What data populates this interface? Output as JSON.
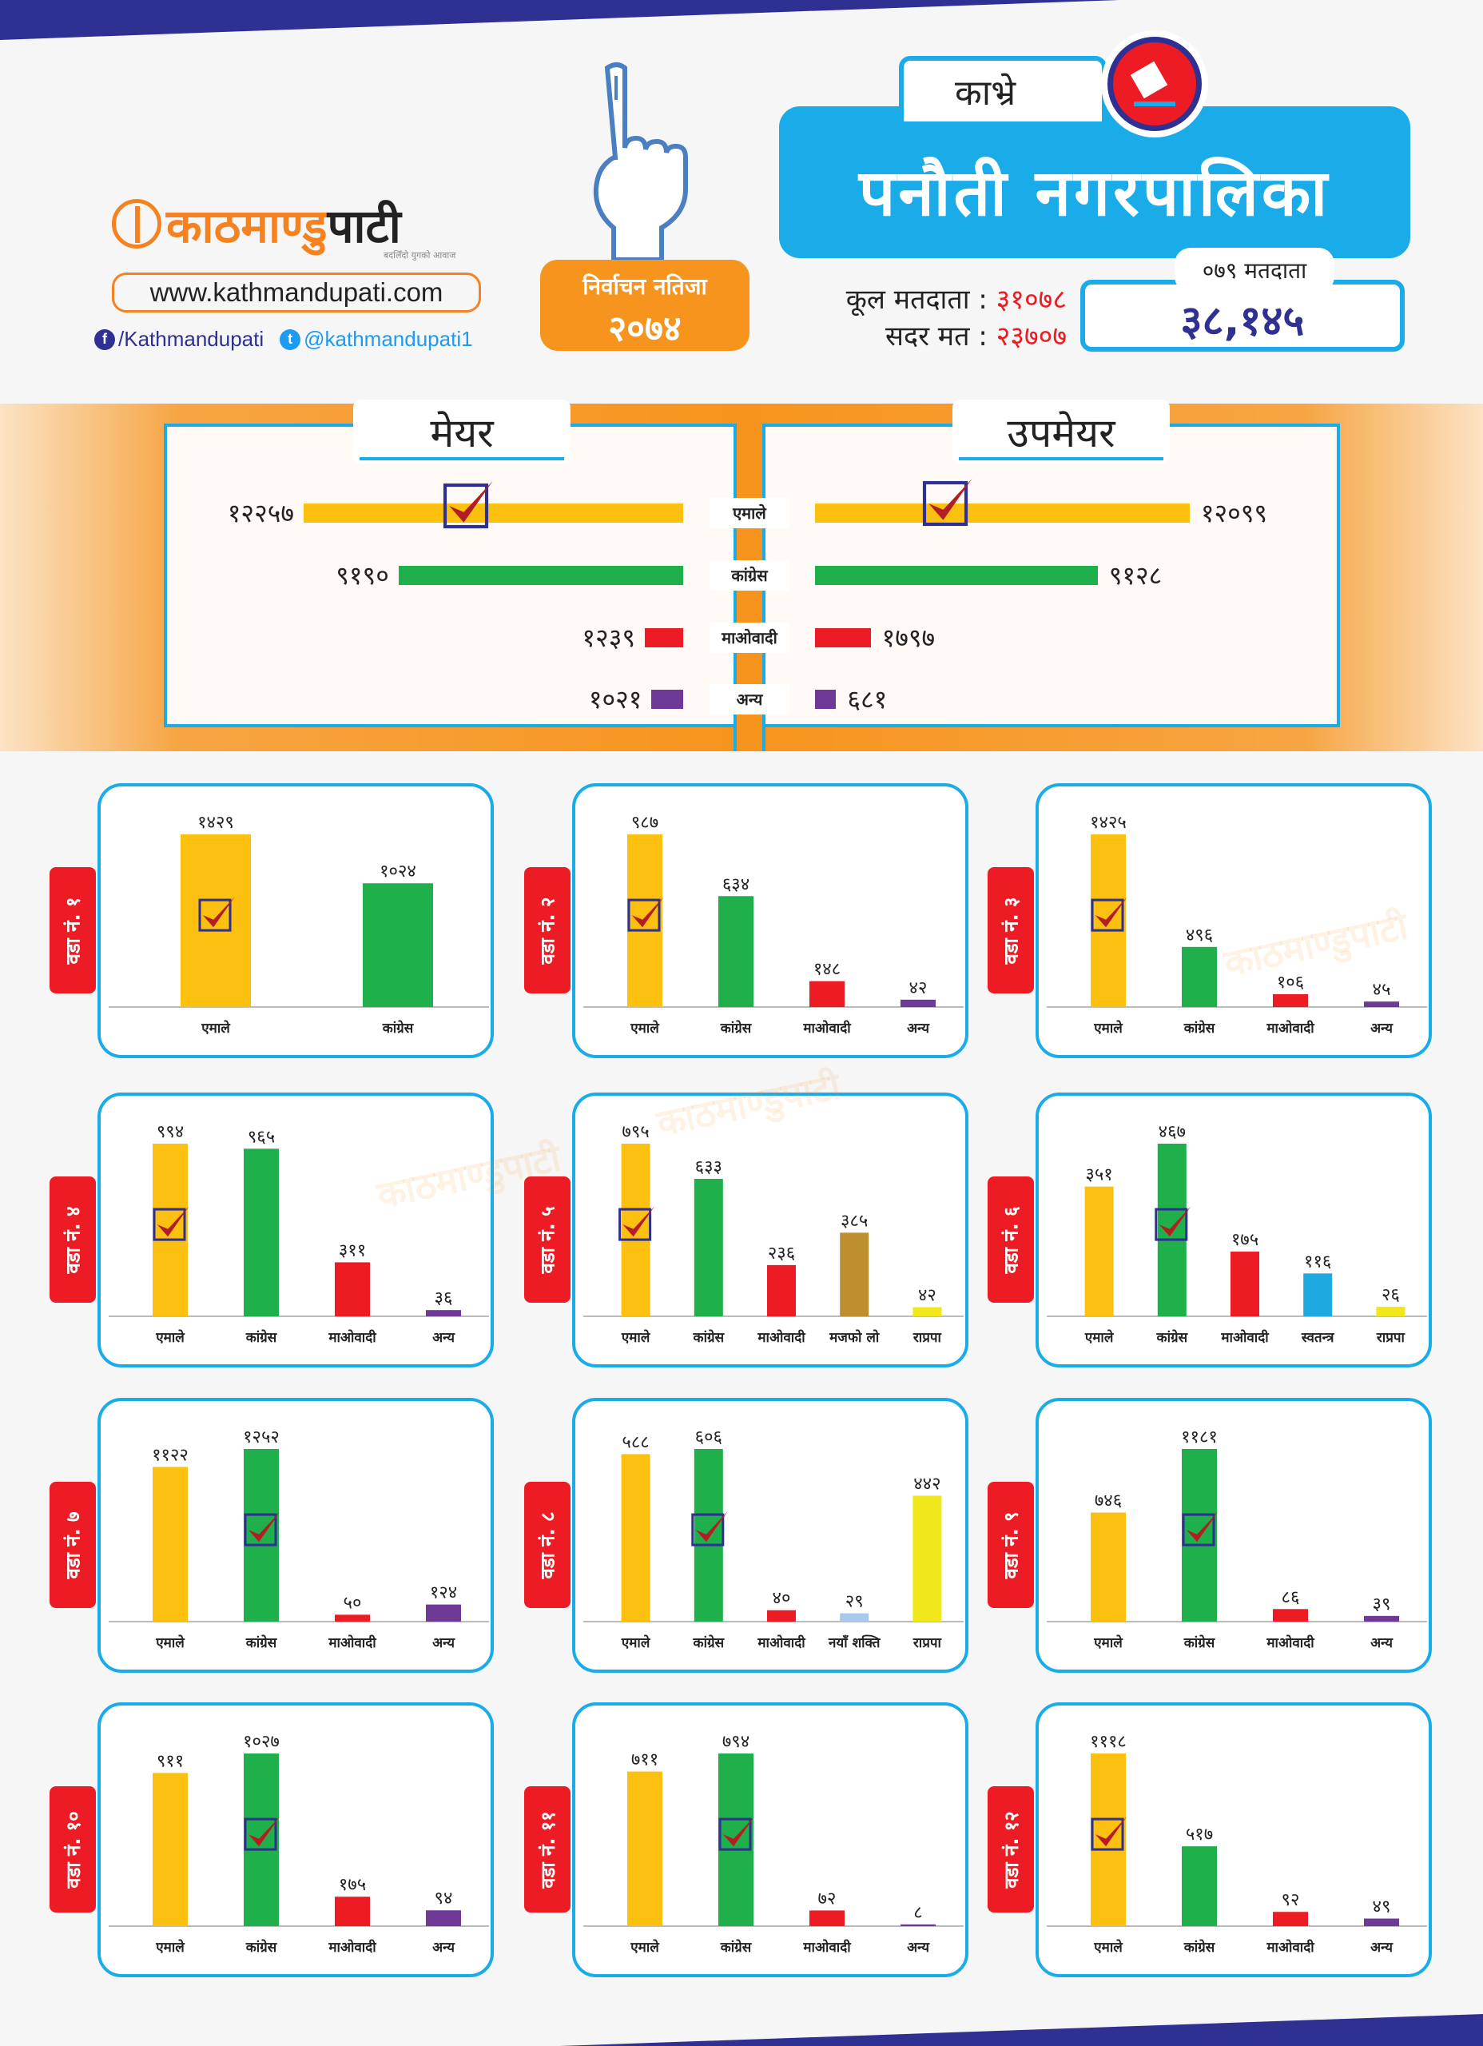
{
  "header": {
    "brand_name_part1": "काठमाण्डु",
    "brand_name_part2": "पाटी",
    "brand_tagline": "बदलिँदो युगको आवाज",
    "website": "www.kathmandupati.com",
    "facebook": "/Kathmandupati",
    "twitter": "@kathmandupati1",
    "result_badge_line1": "निर्वाचन नतिजा",
    "result_badge_line2": "२०७४",
    "district": "काभ्रे",
    "municipality": "पनौती नगरपालिका",
    "total_voters_label": "कूल मतदाता :",
    "total_voters_value": "३१०७८",
    "valid_votes_label": "सदर मत :",
    "valid_votes_value": "२३७०७",
    "voters_079_label": "०७९ मतदाता",
    "voters_079_value": "३८,१४५"
  },
  "colors": {
    "uml": "#fcc010",
    "congress": "#20b04b",
    "maoist": "#ed1c24",
    "other": "#6e3a96",
    "majafo": "#bd8f2f",
    "rpp": "#f0e81a",
    "independent": "#1fa9e1",
    "naya_shakti": "#a9c8ec",
    "accent_blue": "#1aace8",
    "navy": "#2e3191",
    "orange": "#f7941d",
    "tick_red": "#b51d24"
  },
  "chart_data": [
    {
      "type": "bar",
      "orientation": "horizontal",
      "title": "मेयर",
      "categories": [
        "एमाले",
        "कांग्रेस",
        "माओवादी",
        "अन्य"
      ],
      "values": [
        12257,
        9190,
        1239,
        1021
      ],
      "labels": [
        "१२२५७",
        "९१९०",
        "१२३९",
        "१०२१"
      ],
      "winner_index": 0
    },
    {
      "type": "bar",
      "orientation": "horizontal",
      "title": "उपमेयर",
      "categories": [
        "एमाले",
        "कांग्रेस",
        "माओवादी",
        "अन्य"
      ],
      "values": [
        12099,
        9128,
        1797,
        681
      ],
      "labels": [
        "१२०९९",
        "९१२८",
        "१७९७",
        "६८१"
      ],
      "winner_index": 0
    },
    {
      "type": "bar",
      "title": "वडा नं. १",
      "categories": [
        "एमाले",
        "कांग्रेस"
      ],
      "values": [
        1429,
        1024
      ],
      "labels": [
        "१४२९",
        "१०२४"
      ],
      "colors": [
        "uml",
        "congress"
      ],
      "winner_index": 0
    },
    {
      "type": "bar",
      "title": "वडा नं. २",
      "categories": [
        "एमाले",
        "कांग्रेस",
        "माओवादी",
        "अन्य"
      ],
      "values": [
        987,
        634,
        148,
        42
      ],
      "labels": [
        "९८७",
        "६३४",
        "१४८",
        "४२"
      ],
      "colors": [
        "uml",
        "congress",
        "maoist",
        "other"
      ],
      "winner_index": 0
    },
    {
      "type": "bar",
      "title": "वडा नं. ३",
      "categories": [
        "एमाले",
        "कांग्रेस",
        "माओवादी",
        "अन्य"
      ],
      "values": [
        1425,
        496,
        106,
        45
      ],
      "labels": [
        "१४२५",
        "४९६",
        "१०६",
        "४५"
      ],
      "colors": [
        "uml",
        "congress",
        "maoist",
        "other"
      ],
      "winner_index": 0
    },
    {
      "type": "bar",
      "title": "वडा नं. ४",
      "categories": [
        "एमाले",
        "कांग्रेस",
        "माओवादी",
        "अन्य"
      ],
      "values": [
        994,
        965,
        311,
        36
      ],
      "labels": [
        "९९४",
        "९६५",
        "३११",
        "३६"
      ],
      "colors": [
        "uml",
        "congress",
        "maoist",
        "other"
      ],
      "winner_index": 0
    },
    {
      "type": "bar",
      "title": "वडा नं. ५",
      "categories": [
        "एमाले",
        "कांग्रेस",
        "माओवादी",
        "मजफो लो",
        "राप्रपा"
      ],
      "values": [
        795,
        633,
        236,
        385,
        42
      ],
      "labels": [
        "७९५",
        "६३३",
        "२३६",
        "३८५",
        "४२"
      ],
      "colors": [
        "uml",
        "congress",
        "maoist",
        "majafo",
        "rpp"
      ],
      "winner_index": 0
    },
    {
      "type": "bar",
      "title": "वडा नं. ६",
      "categories": [
        "एमाले",
        "कांग्रेस",
        "माओवादी",
        "स्वतन्त्र",
        "राप्रपा"
      ],
      "values": [
        351,
        467,
        175,
        116,
        26
      ],
      "labels": [
        "३५१",
        "४६७",
        "१७५",
        "११६",
        "२६"
      ],
      "colors": [
        "uml",
        "congress",
        "maoist",
        "independent",
        "rpp"
      ],
      "winner_index": 1
    },
    {
      "type": "bar",
      "title": "वडा नं. ७",
      "categories": [
        "एमाले",
        "कांग्रेस",
        "माओवादी",
        "अन्य"
      ],
      "values": [
        1122,
        1252,
        50,
        124
      ],
      "labels": [
        "११२२",
        "१२५२",
        "५०",
        "१२४"
      ],
      "colors": [
        "uml",
        "congress",
        "maoist",
        "other"
      ],
      "winner_index": 1
    },
    {
      "type": "bar",
      "title": "वडा नं. ८",
      "categories": [
        "एमाले",
        "कांग्रेस",
        "माओवादी",
        "नयाँ शक्ति",
        "राप्रपा"
      ],
      "values": [
        588,
        606,
        40,
        29,
        442
      ],
      "labels": [
        "५८८",
        "६०६",
        "४०",
        "२९",
        "४४२"
      ],
      "colors": [
        "uml",
        "congress",
        "maoist",
        "naya_shakti",
        "rpp"
      ],
      "winner_index": 1
    },
    {
      "type": "bar",
      "title": "वडा नं. ९",
      "categories": [
        "एमाले",
        "कांग्रेस",
        "माओवादी",
        "अन्य"
      ],
      "values": [
        746,
        1181,
        86,
        39
      ],
      "labels": [
        "७४६",
        "११८१",
        "८६",
        "३९"
      ],
      "colors": [
        "uml",
        "congress",
        "maoist",
        "other"
      ],
      "winner_index": 1
    },
    {
      "type": "bar",
      "title": "वडा नं. १०",
      "categories": [
        "एमाले",
        "कांग्रेस",
        "माओवादी",
        "अन्य"
      ],
      "values": [
        911,
        1027,
        175,
        94
      ],
      "labels": [
        "९११",
        "१०२७",
        "१७५",
        "९४"
      ],
      "colors": [
        "uml",
        "congress",
        "maoist",
        "other"
      ],
      "winner_index": 1
    },
    {
      "type": "bar",
      "title": "वडा नं. ११",
      "categories": [
        "एमाले",
        "कांग्रेस",
        "माओवादी",
        "अन्य"
      ],
      "values": [
        711,
        794,
        72,
        8
      ],
      "labels": [
        "७११",
        "७९४",
        "७२",
        "८"
      ],
      "colors": [
        "uml",
        "congress",
        "maoist",
        "other"
      ],
      "winner_index": 1
    },
    {
      "type": "bar",
      "title": "वडा नं. १२",
      "categories": [
        "एमाले",
        "कांग्रेस",
        "माओवादी",
        "अन्य"
      ],
      "values": [
        1118,
        517,
        92,
        49
      ],
      "labels": [
        "१११८",
        "५१७",
        "९२",
        "४९"
      ],
      "colors": [
        "uml",
        "congress",
        "maoist",
        "other"
      ],
      "winner_index": 0
    }
  ]
}
